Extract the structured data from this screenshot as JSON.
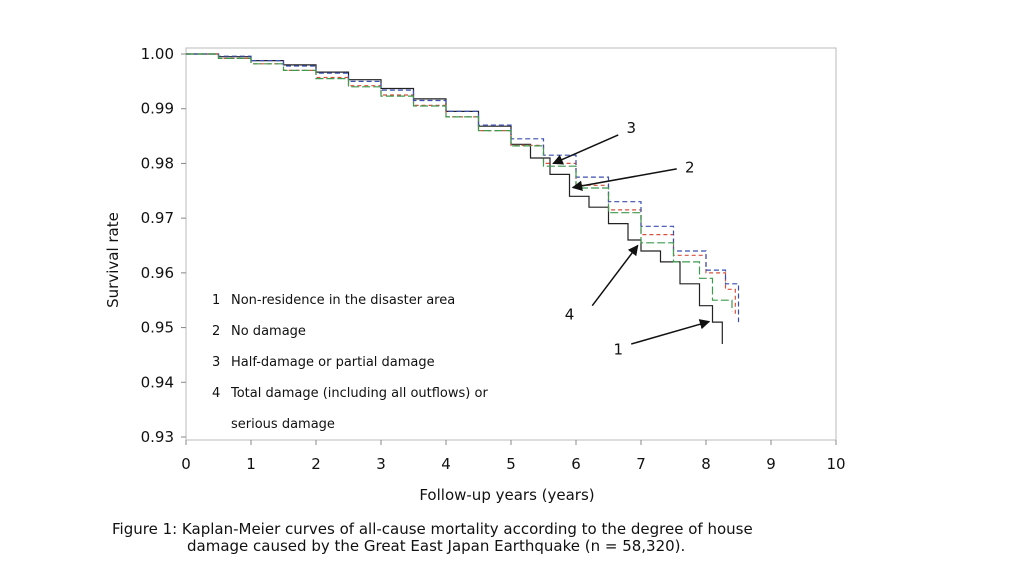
{
  "chart_data": {
    "type": "line",
    "title": "",
    "xlabel": "Follow-up years (years)",
    "ylabel": "Survival rate",
    "xlim": [
      0,
      10
    ],
    "ylim": [
      0.93,
      1.0
    ],
    "xticks": [
      "0",
      "1",
      "2",
      "3",
      "4",
      "5",
      "6",
      "7",
      "8",
      "9",
      "10"
    ],
    "yticks": [
      "0.93",
      "0.94",
      "0.95",
      "0.96",
      "0.97",
      "0.98",
      "0.99",
      "1.00"
    ],
    "grid": false,
    "legend_placement": "lower-left",
    "legend": [
      {
        "num": "1",
        "label": "Non-residence in the disaster area"
      },
      {
        "num": "2",
        "label": "No damage"
      },
      {
        "num": "3",
        "label": "Half-damage or partial damage"
      },
      {
        "num": "4",
        "label": "Total damage (including all outflows) or",
        "label2": "serious damage"
      }
    ],
    "series": [
      {
        "id": "1",
        "color": "#222222",
        "dash": "",
        "x": [
          0,
          0.5,
          1.0,
          1.5,
          2.0,
          2.5,
          3.0,
          3.5,
          4.0,
          4.5,
          5.0,
          5.3,
          5.6,
          5.9,
          6.2,
          6.5,
          6.8,
          7.0,
          7.3,
          7.6,
          7.9,
          8.1,
          8.25
        ],
        "y": [
          1.0,
          0.9995,
          0.9988,
          0.998,
          0.9967,
          0.9953,
          0.9937,
          0.9918,
          0.9895,
          0.9868,
          0.9835,
          0.981,
          0.978,
          0.974,
          0.972,
          0.969,
          0.966,
          0.964,
          0.962,
          0.958,
          0.954,
          0.951,
          0.947
        ]
      },
      {
        "id": "2",
        "color": "#d9503c",
        "dash": "4,3",
        "x": [
          0,
          0.5,
          1.0,
          1.5,
          2.0,
          2.5,
          3.0,
          3.5,
          4.0,
          4.5,
          5.0,
          5.5,
          6.0,
          6.5,
          7.0,
          7.5,
          8.0,
          8.3,
          8.45
        ],
        "y": [
          1.0,
          0.9992,
          0.9982,
          0.997,
          0.9957,
          0.9942,
          0.9925,
          0.9906,
          0.9885,
          0.986,
          0.9833,
          0.98,
          0.976,
          0.9715,
          0.967,
          0.9632,
          0.96,
          0.957,
          0.952
        ]
      },
      {
        "id": "3",
        "color": "#3a4fb0",
        "dash": "5,3",
        "x": [
          0,
          0.5,
          1.0,
          1.5,
          2.0,
          2.5,
          3.0,
          3.5,
          4.0,
          4.5,
          5.0,
          5.5,
          6.0,
          6.5,
          7.0,
          7.5,
          8.0,
          8.3,
          8.5
        ],
        "y": [
          1.0,
          0.9996,
          0.9988,
          0.9978,
          0.9965,
          0.995,
          0.9934,
          0.9915,
          0.9895,
          0.987,
          0.9845,
          0.9815,
          0.9775,
          0.973,
          0.9685,
          0.964,
          0.9605,
          0.958,
          0.951
        ]
      },
      {
        "id": "4",
        "color": "#3d9a4f",
        "dash": "8,3",
        "x": [
          0,
          0.5,
          1.0,
          1.5,
          2.0,
          2.5,
          3.0,
          3.5,
          4.0,
          4.5,
          5.0,
          5.5,
          6.0,
          6.5,
          7.0,
          7.5,
          7.9,
          8.1,
          8.4
        ],
        "y": [
          1.0,
          0.9992,
          0.9982,
          0.997,
          0.9955,
          0.994,
          0.9923,
          0.9905,
          0.9885,
          0.986,
          0.9832,
          0.9795,
          0.9755,
          0.971,
          0.9655,
          0.962,
          0.959,
          0.955,
          0.953
        ]
      }
    ],
    "annotations": [
      {
        "label": "3",
        "text_xy": [
          6.85,
          0.9865
        ],
        "arrow_from": [
          6.65,
          0.9852
        ],
        "arrow_to": [
          5.65,
          0.98
        ]
      },
      {
        "label": "2",
        "text_xy": [
          7.75,
          0.9793
        ],
        "arrow_from": [
          7.55,
          0.979
        ],
        "arrow_to": [
          5.95,
          0.9756
        ]
      },
      {
        "label": "4",
        "text_xy": [
          5.9,
          0.9524
        ],
        "arrow_from": [
          6.25,
          0.954
        ],
        "arrow_to": [
          6.95,
          0.965
        ]
      },
      {
        "label": "1",
        "text_xy": [
          6.65,
          0.946
        ],
        "arrow_from": [
          6.85,
          0.947
        ],
        "arrow_to": [
          8.05,
          0.9511
        ]
      }
    ]
  },
  "caption": {
    "line1": "Figure 1: Kaplan-Meier curves of all-cause mortality according to the degree of house",
    "line2": "damage caused by the Great East Japan Earthquake (n = 58,320)."
  }
}
